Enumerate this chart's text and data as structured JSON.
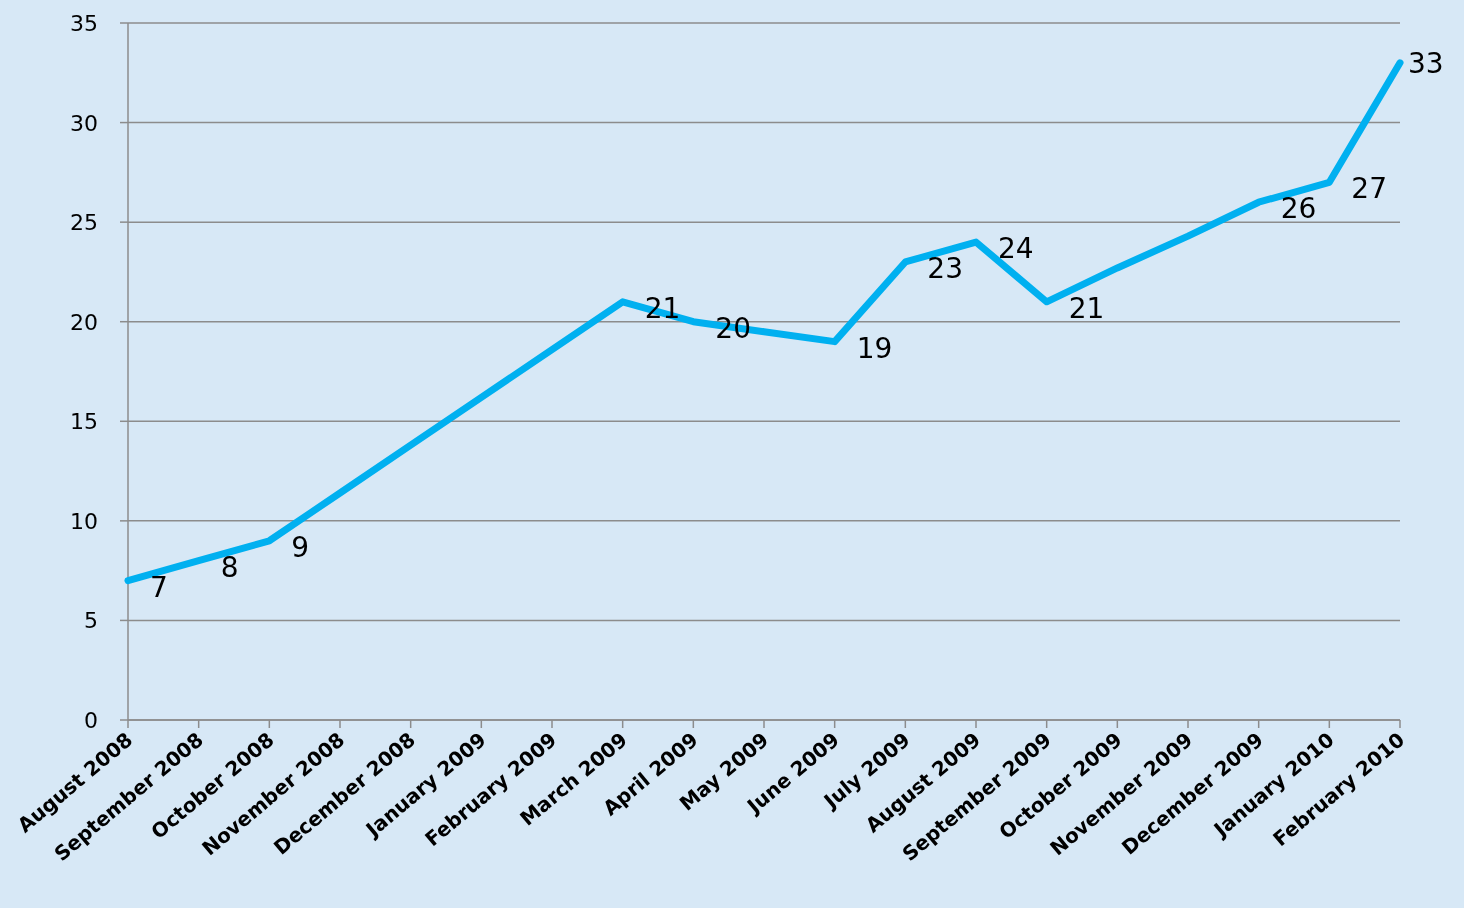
{
  "chart_data": {
    "type": "line",
    "categories": [
      "August 2008",
      "September 2008",
      "October 2008",
      "November 2008",
      "December 2008",
      "January 2009",
      "February 2009",
      "March 2009",
      "April 2009",
      "May 2009",
      "June 2009",
      "July 2009",
      "August 2009",
      "September 2009",
      "October 2009",
      "November 2009",
      "December 2009",
      "January 2010",
      "February 2010"
    ],
    "series": [
      {
        "color": "#00b0f0",
        "values": [
          7,
          8,
          9,
          11.4,
          13.8,
          16.2,
          18.6,
          21,
          20,
          19.5,
          19,
          23,
          24,
          21,
          22.7,
          24.3,
          26,
          27,
          33
        ],
        "value_labels": [
          "7",
          "8",
          "9",
          null,
          null,
          null,
          null,
          "21",
          "20",
          null,
          "19",
          "23",
          "24",
          "21",
          null,
          null,
          "26",
          "27",
          "33"
        ]
      }
    ],
    "ylim": [
      0,
      35
    ],
    "yticks": [
      0,
      5,
      10,
      15,
      20,
      25,
      30,
      35
    ],
    "grid": "y",
    "marker": "none",
    "line_style": "solid"
  }
}
